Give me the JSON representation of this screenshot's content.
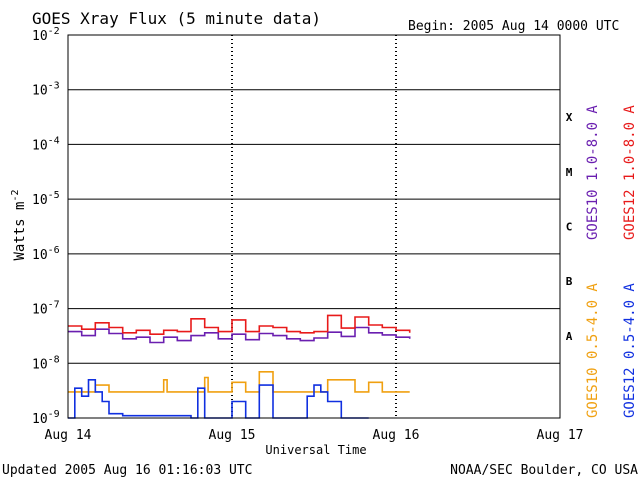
{
  "chart_data": {
    "type": "line",
    "title": "GOES Xray Flux (5 minute data)",
    "begin": "Begin:  2005 Aug 14 0000 UTC",
    "xlabel": "Universal Time",
    "ylabel": "Watts m",
    "ylabel_sup": "-2",
    "y_scale": "log",
    "ylim": [
      1e-09,
      0.01
    ],
    "y_ticks": [
      {
        "base": "10",
        "exp": "-2"
      },
      {
        "base": "10",
        "exp": "-3"
      },
      {
        "base": "10",
        "exp": "-4"
      },
      {
        "base": "10",
        "exp": "-5"
      },
      {
        "base": "10",
        "exp": "-6"
      },
      {
        "base": "10",
        "exp": "-7"
      },
      {
        "base": "10",
        "exp": "-8"
      },
      {
        "base": "10",
        "exp": "-9"
      }
    ],
    "x_ticks": [
      "Aug 14",
      "Aug 15",
      "Aug 16",
      "Aug 17"
    ],
    "xlim": [
      0,
      72
    ],
    "class_labels": [
      "X",
      "M",
      "C",
      "B",
      "A"
    ],
    "grid": true,
    "series": [
      {
        "name": "GOES10 1.0-8.0 A",
        "color": "#6a1fb0",
        "x": [
          0,
          2,
          4,
          6,
          8,
          10,
          12,
          14,
          16,
          18,
          20,
          22,
          24,
          26,
          28,
          30,
          32,
          34,
          36,
          38,
          40,
          42,
          44,
          46,
          48,
          50
        ],
        "values": [
          3.8e-08,
          3.2e-08,
          4.2e-08,
          3.5e-08,
          2.8e-08,
          3e-08,
          2.4e-08,
          3e-08,
          2.6e-08,
          3.2e-08,
          3.6e-08,
          2.8e-08,
          3.4e-08,
          2.7e-08,
          3.5e-08,
          3.2e-08,
          2.8e-08,
          2.6e-08,
          2.9e-08,
          3.7e-08,
          3.1e-08,
          4.5e-08,
          3.6e-08,
          3.3e-08,
          3e-08,
          2.8e-08
        ]
      },
      {
        "name": "GOES12 1.0-8.0 A",
        "color": "#e81a1a",
        "x": [
          0,
          2,
          4,
          6,
          8,
          10,
          12,
          14,
          16,
          18,
          20,
          22,
          24,
          26,
          28,
          30,
          32,
          34,
          36,
          38,
          40,
          42,
          44,
          46,
          48,
          50
        ],
        "values": [
          4.8e-08,
          4.2e-08,
          5.5e-08,
          4.5e-08,
          3.6e-08,
          4e-08,
          3.4e-08,
          4e-08,
          3.8e-08,
          6.5e-08,
          4.5e-08,
          3.8e-08,
          6.2e-08,
          3.8e-08,
          4.8e-08,
          4.5e-08,
          3.8e-08,
          3.6e-08,
          3.8e-08,
          7.5e-08,
          4.4e-08,
          7e-08,
          5e-08,
          4.5e-08,
          4e-08,
          3.6e-08
        ]
      },
      {
        "name": "GOES10 0.5-4.0 A",
        "color": "#f0a010",
        "x": [
          0,
          1,
          4,
          6,
          10,
          12,
          14,
          14.5,
          16,
          18,
          20,
          20.5,
          22,
          24,
          26,
          28,
          30,
          34,
          36,
          38,
          40,
          42,
          44,
          46,
          48,
          50
        ],
        "values": [
          3e-09,
          3e-09,
          4e-09,
          3e-09,
          3e-09,
          3e-09,
          5e-09,
          3e-09,
          3e-09,
          3e-09,
          5.5e-09,
          3e-09,
          3e-09,
          4.5e-09,
          3e-09,
          7e-09,
          3e-09,
          3e-09,
          3e-09,
          5e-09,
          5e-09,
          3e-09,
          4.5e-09,
          3e-09,
          3e-09,
          3e-09
        ]
      },
      {
        "name": "GOES12 0.5-4.0 A",
        "color": "#1030e0",
        "x": [
          0,
          1,
          2,
          3,
          4,
          5,
          6,
          8,
          10,
          12,
          14,
          16,
          18,
          19,
          20,
          22,
          24,
          26,
          28,
          30,
          32,
          34,
          35,
          36,
          37,
          38,
          40,
          42,
          44
        ],
        "values": [
          1e-09,
          3.5e-09,
          2.5e-09,
          5e-09,
          3e-09,
          2e-09,
          1.2e-09,
          1.1e-09,
          1.1e-09,
          1.1e-09,
          1.1e-09,
          1.1e-09,
          1e-09,
          3.5e-09,
          1e-09,
          1e-09,
          2e-09,
          1e-09,
          4e-09,
          1e-09,
          1e-09,
          1e-09,
          2.5e-09,
          4e-09,
          3e-09,
          2e-09,
          1e-09,
          1e-09,
          1e-09
        ]
      }
    ]
  },
  "footer": {
    "updated": "Updated 2005 Aug 16 01:16:03 UTC",
    "credit": "NOAA/SEC Boulder, CO USA"
  }
}
